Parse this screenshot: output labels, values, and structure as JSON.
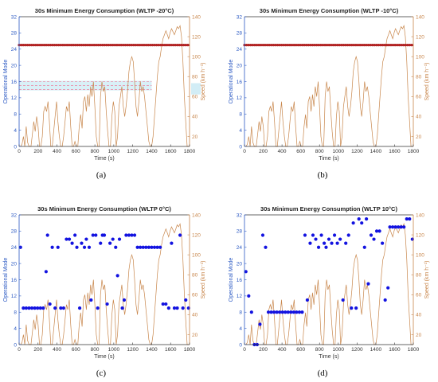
{
  "colors": {
    "left_axis": "#2b59c3",
    "right_axis": "#c8864b",
    "mode_marker": "#1212e0",
    "speed_line": "#c8864b",
    "band_a": "#ef6b8a",
    "mode_marker_ab": "#8b1a1a"
  },
  "chart_data": [
    {
      "type": "scatter",
      "panel": "(a)",
      "title": "30s Minimum Energy Consumption (WLTP -20°C)",
      "xlabel": "Time (s)",
      "ylabel": "Operational Mode",
      "y2label": "Speed (km h⁻¹)",
      "xlim": [
        0,
        1800
      ],
      "ylim": [
        0,
        32
      ],
      "y2lim": [
        10,
        140
      ],
      "xticks": [
        "0",
        "200",
        "400",
        "600",
        "800",
        "1000",
        "1200",
        "1400",
        "1600",
        "1800"
      ],
      "yticks": [
        "0",
        "4",
        "8",
        "12",
        "16",
        "20",
        "24",
        "28",
        "32"
      ],
      "y2ticks": [
        "20",
        "40",
        "60",
        "80",
        "100",
        "120",
        "140"
      ],
      "mode_constant": 25,
      "band": {
        "y": [
          14,
          16
        ],
        "x": [
          0,
          1400
        ]
      },
      "speed_trace": "WLTP"
    },
    {
      "type": "scatter",
      "panel": "(b)",
      "title": "30s Minimum Energy Consumption (WLTP -10°C)",
      "xlabel": "Time (s)",
      "ylabel": "Operational Mode",
      "y2label": "Speed (km h⁻¹)",
      "xlim": [
        0,
        1800
      ],
      "ylim": [
        0,
        32
      ],
      "y2lim": [
        10,
        140
      ],
      "xticks": [
        "0",
        "200",
        "400",
        "600",
        "800",
        "1000",
        "1200",
        "1400",
        "1600",
        "1800"
      ],
      "yticks": [
        "0",
        "4",
        "8",
        "12",
        "16",
        "20",
        "24",
        "28",
        "32"
      ],
      "y2ticks": [
        "20",
        "40",
        "60",
        "80",
        "100",
        "120",
        "140"
      ],
      "mode_constant": 25,
      "speed_trace": "WLTP"
    },
    {
      "type": "scatter",
      "panel": "(c)",
      "title": "30s Minimum Energy Consumption (WLTP 0°C)",
      "xlabel": "Time (s)",
      "ylabel": "Operational Mode",
      "y2label": "Speed (km h⁻¹)",
      "xlim": [
        0,
        1800
      ],
      "ylim": [
        0,
        32
      ],
      "y2lim": [
        10,
        140
      ],
      "xticks": [
        "0",
        "200",
        "400",
        "600",
        "800",
        "1000",
        "1200",
        "1400",
        "1600",
        "1800"
      ],
      "yticks": [
        "0",
        "4",
        "8",
        "12",
        "16",
        "20",
        "24",
        "28",
        "32"
      ],
      "y2ticks": [
        "20",
        "40",
        "60",
        "80",
        "100",
        "120",
        "140"
      ],
      "speed_trace": "WLTP",
      "points": [
        [
          15,
          24
        ],
        [
          45,
          9
        ],
        [
          75,
          9
        ],
        [
          105,
          9
        ],
        [
          135,
          9
        ],
        [
          165,
          9
        ],
        [
          195,
          9
        ],
        [
          225,
          9
        ],
        [
          255,
          9
        ],
        [
          285,
          18
        ],
        [
          300,
          27
        ],
        [
          325,
          10
        ],
        [
          350,
          24
        ],
        [
          380,
          9
        ],
        [
          410,
          24
        ],
        [
          440,
          9
        ],
        [
          470,
          9
        ],
        [
          500,
          26
        ],
        [
          530,
          26
        ],
        [
          560,
          25
        ],
        [
          590,
          27
        ],
        [
          610,
          24
        ],
        [
          640,
          9
        ],
        [
          660,
          25
        ],
        [
          690,
          24
        ],
        [
          710,
          26
        ],
        [
          740,
          24
        ],
        [
          760,
          11
        ],
        [
          780,
          27
        ],
        [
          810,
          27
        ],
        [
          830,
          9
        ],
        [
          860,
          25
        ],
        [
          880,
          27
        ],
        [
          900,
          27
        ],
        [
          930,
          10
        ],
        [
          960,
          25
        ],
        [
          990,
          26
        ],
        [
          1020,
          24
        ],
        [
          1040,
          17
        ],
        [
          1060,
          26
        ],
        [
          1090,
          9
        ],
        [
          1110,
          11
        ],
        [
          1130,
          27
        ],
        [
          1160,
          27
        ],
        [
          1190,
          27
        ],
        [
          1220,
          27
        ],
        [
          1250,
          24
        ],
        [
          1280,
          24
        ],
        [
          1310,
          24
        ],
        [
          1340,
          24
        ],
        [
          1370,
          24
        ],
        [
          1400,
          24
        ],
        [
          1430,
          24
        ],
        [
          1460,
          24
        ],
        [
          1490,
          24
        ],
        [
          1520,
          10
        ],
        [
          1550,
          10
        ],
        [
          1580,
          9
        ],
        [
          1610,
          25
        ],
        [
          1640,
          9
        ],
        [
          1670,
          9
        ],
        [
          1700,
          27
        ],
        [
          1730,
          9
        ],
        [
          1760,
          11
        ],
        [
          1790,
          9
        ]
      ]
    },
    {
      "type": "scatter",
      "panel": "(d)",
      "title": "30s Minimum Energy Consumption (WLTP 10°C)",
      "xlabel": "Time (s)",
      "ylabel": "Operational Mode",
      "y2label": "Speed (km h⁻¹)",
      "xlim": [
        0,
        1800
      ],
      "ylim": [
        0,
        32
      ],
      "y2lim": [
        10,
        140
      ],
      "xticks": [
        "0",
        "200",
        "400",
        "600",
        "800",
        "1000",
        "1200",
        "1400",
        "1600",
        "1800"
      ],
      "yticks": [
        "0",
        "4",
        "8",
        "12",
        "16",
        "20",
        "24",
        "28",
        "32"
      ],
      "y2ticks": [
        "20",
        "40",
        "60",
        "80",
        "100",
        "120",
        "140"
      ],
      "speed_trace": "WLTP",
      "points": [
        [
          15,
          18
        ],
        [
          45,
          12
        ],
        [
          75,
          8
        ],
        [
          105,
          0
        ],
        [
          135,
          0
        ],
        [
          165,
          5
        ],
        [
          195,
          27
        ],
        [
          225,
          24
        ],
        [
          255,
          8
        ],
        [
          285,
          8
        ],
        [
          315,
          8
        ],
        [
          345,
          8
        ],
        [
          375,
          8
        ],
        [
          405,
          8
        ],
        [
          435,
          8
        ],
        [
          465,
          8
        ],
        [
          495,
          8
        ],
        [
          525,
          8
        ],
        [
          555,
          8
        ],
        [
          585,
          8
        ],
        [
          615,
          8
        ],
        [
          645,
          27
        ],
        [
          670,
          11
        ],
        [
          700,
          25
        ],
        [
          730,
          27
        ],
        [
          760,
          26
        ],
        [
          790,
          24
        ],
        [
          820,
          27
        ],
        [
          850,
          25
        ],
        [
          870,
          24
        ],
        [
          900,
          26
        ],
        [
          930,
          25
        ],
        [
          960,
          27
        ],
        [
          990,
          25
        ],
        [
          1020,
          26
        ],
        [
          1050,
          11
        ],
        [
          1080,
          25
        ],
        [
          1110,
          27
        ],
        [
          1140,
          9
        ],
        [
          1160,
          30
        ],
        [
          1190,
          9
        ],
        [
          1220,
          31
        ],
        [
          1250,
          30
        ],
        [
          1280,
          24
        ],
        [
          1300,
          31
        ],
        [
          1320,
          15
        ],
        [
          1350,
          27
        ],
        [
          1380,
          26
        ],
        [
          1410,
          28
        ],
        [
          1440,
          28
        ],
        [
          1470,
          25
        ],
        [
          1500,
          11
        ],
        [
          1530,
          14
        ],
        [
          1550,
          29
        ],
        [
          1580,
          29
        ],
        [
          1610,
          29
        ],
        [
          1640,
          29
        ],
        [
          1670,
          29
        ],
        [
          1700,
          29
        ],
        [
          1730,
          31
        ],
        [
          1760,
          31
        ],
        [
          1790,
          26
        ]
      ]
    }
  ],
  "captions": [
    "(a)",
    "(b)",
    "(c)",
    "(d)"
  ]
}
